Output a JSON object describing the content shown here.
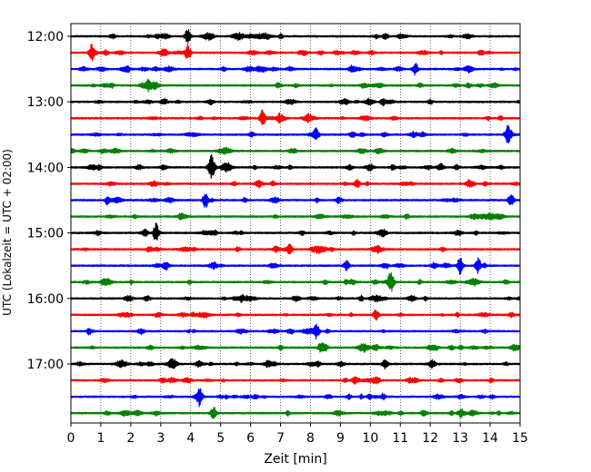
{
  "chart_data": {
    "type": "line",
    "title": "",
    "xlabel": "Zeit  [min]",
    "ylabel": "UTC (Lokalzeit = UTC + 02:00)",
    "xlim": [
      0,
      15
    ],
    "x_ticks": [
      0,
      1,
      2,
      3,
      4,
      5,
      6,
      7,
      8,
      9,
      10,
      11,
      12,
      13,
      14,
      15
    ],
    "x_tick_labels": [
      "0",
      "1",
      "2",
      "3",
      "4",
      "5",
      "6",
      "7",
      "8",
      "9",
      "10",
      "11",
      "12",
      "13",
      "14",
      "15"
    ],
    "y_ticks": [
      "12:00",
      "13:00",
      "14:00",
      "15:00",
      "16:00",
      "17:00"
    ],
    "grid": "vertical dotted at each minute",
    "trace_colors": [
      "#000000",
      "#ff0000",
      "#0000ff",
      "#008000"
    ],
    "traces": [
      {
        "time": "12:00",
        "color": "#000000",
        "events": [
          [
            3.9,
            1.8
          ]
        ]
      },
      {
        "time": "12:15",
        "color": "#ff0000",
        "events": [
          [
            0.7,
            2.2
          ],
          [
            3.9,
            2.2
          ]
        ]
      },
      {
        "time": "12:30",
        "color": "#0000ff",
        "events": [
          [
            11.5,
            1.5
          ]
        ]
      },
      {
        "time": "12:45",
        "color": "#008000",
        "events": [
          [
            2.6,
            1.6
          ]
        ]
      },
      {
        "time": "13:00",
        "color": "#000000",
        "events": []
      },
      {
        "time": "13:15",
        "color": "#ff0000",
        "events": [
          [
            6.4,
            2.2
          ]
        ]
      },
      {
        "time": "13:30",
        "color": "#0000ff",
        "events": [
          [
            8.2,
            1.4
          ],
          [
            14.6,
            2.0
          ]
        ]
      },
      {
        "time": "13:45",
        "color": "#008000",
        "events": []
      },
      {
        "time": "14:00",
        "color": "#000000",
        "events": [
          [
            4.7,
            2.5
          ]
        ]
      },
      {
        "time": "14:15",
        "color": "#ff0000",
        "events": []
      },
      {
        "time": "14:30",
        "color": "#0000ff",
        "events": [
          [
            4.5,
            2.2
          ],
          [
            14.7,
            1.6
          ]
        ]
      },
      {
        "time": "14:45",
        "color": "#008000",
        "events": []
      },
      {
        "time": "15:00",
        "color": "#000000",
        "events": [
          [
            2.85,
            2.6
          ]
        ]
      },
      {
        "time": "15:15",
        "color": "#ff0000",
        "events": [
          [
            7.3,
            1.4
          ]
        ]
      },
      {
        "time": "15:30",
        "color": "#0000ff",
        "events": [
          [
            13.0,
            2.2
          ],
          [
            13.6,
            1.9
          ],
          [
            9.2,
            1.2
          ]
        ]
      },
      {
        "time": "15:45",
        "color": "#008000",
        "events": [
          [
            10.7,
            2.3
          ]
        ]
      },
      {
        "time": "16:00",
        "color": "#000000",
        "events": []
      },
      {
        "time": "16:15",
        "color": "#ff0000",
        "events": [
          [
            10.2,
            1.4
          ]
        ]
      },
      {
        "time": "16:30",
        "color": "#0000ff",
        "events": [
          [
            8.2,
            1.8
          ]
        ]
      },
      {
        "time": "16:45",
        "color": "#008000",
        "events": []
      },
      {
        "time": "17:00",
        "color": "#000000",
        "events": [
          [
            10.5,
            1.3
          ]
        ]
      },
      {
        "time": "17:15",
        "color": "#ff0000",
        "events": []
      },
      {
        "time": "17:30",
        "color": "#0000ff",
        "events": [
          [
            4.3,
            2.3
          ]
        ]
      },
      {
        "time": "17:45",
        "color": "#008000",
        "events": [
          [
            4.75,
            1.4
          ]
        ]
      }
    ]
  }
}
